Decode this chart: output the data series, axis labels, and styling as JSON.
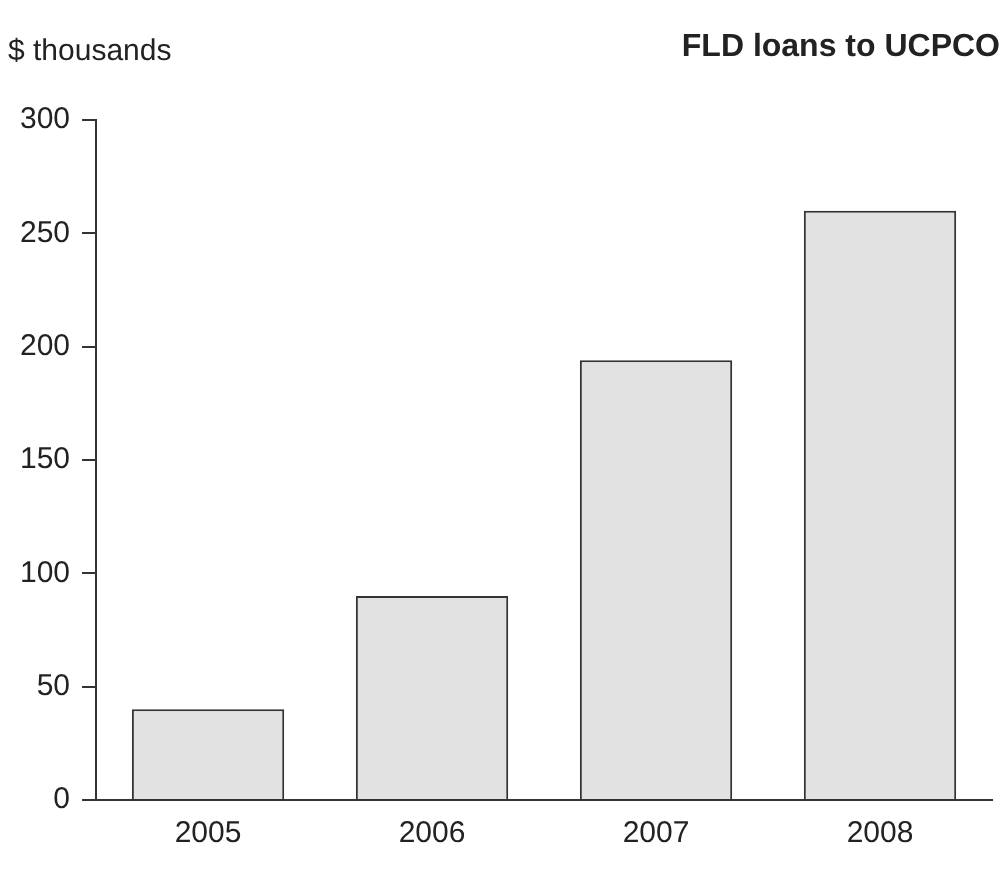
{
  "chart_data": {
    "type": "bar",
    "title": "FLD loans to UCPCO",
    "ylabel": "$ thousands",
    "categories": [
      "2005",
      "2006",
      "2007",
      "2008"
    ],
    "values": [
      40,
      90,
      194,
      260
    ],
    "color": "#e2e2e2",
    "ylim": [
      0,
      300
    ],
    "yticks": [
      0,
      50,
      100,
      150,
      200,
      250,
      300
    ],
    "grid": false,
    "legend": false
  }
}
